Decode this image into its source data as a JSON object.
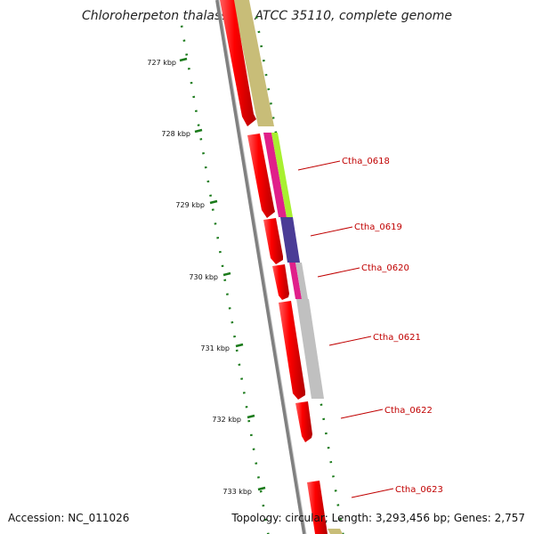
{
  "title": "Chloroherpeton thalassium ATCC 35110, complete genome",
  "footer": {
    "accession": "Accession: NC_011026",
    "summary": "Topology: circular; Length: 3,293,456 bp; Genes: 2,757"
  },
  "colors": {
    "forward_gene": "#ff0000",
    "backbone": "#808080",
    "tick": "#1a7a1a",
    "label": "#c00000",
    "cog_olive": "#c8bd78",
    "cog_magenta": "#e0208a",
    "cog_lime": "#a8f030",
    "cog_purple": "#4a3c96",
    "cog_grey": "#c0c0c0"
  },
  "ticks": [
    {
      "label": "727 kbp"
    },
    {
      "label": "728 kbp"
    },
    {
      "label": "729 kbp"
    },
    {
      "label": "730 kbp"
    },
    {
      "label": "731 kbp"
    },
    {
      "label": "732 kbp"
    },
    {
      "label": "733 kbp"
    }
  ],
  "genes": [
    {
      "label": "Ctha_0618"
    },
    {
      "label": "Ctha_0619"
    },
    {
      "label": "Ctha_0620"
    },
    {
      "label": "Ctha_0621"
    },
    {
      "label": "Ctha_0622"
    },
    {
      "label": "Ctha_0623"
    }
  ]
}
